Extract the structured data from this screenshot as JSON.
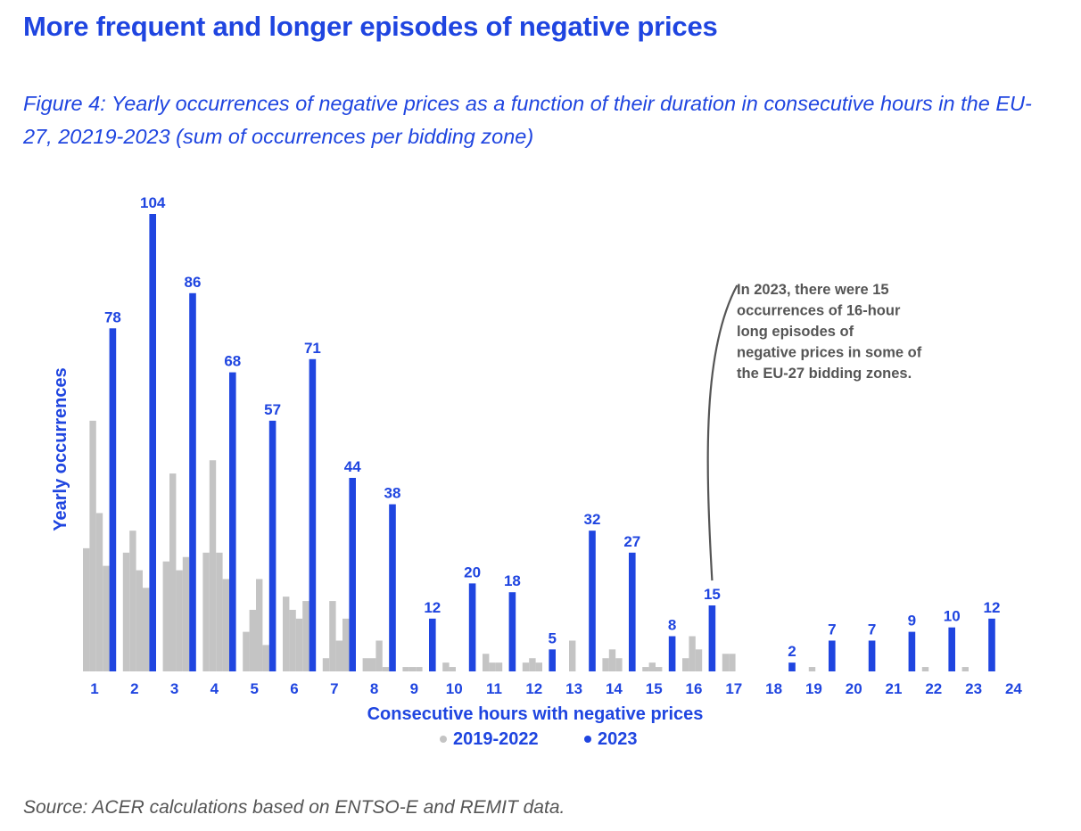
{
  "header": {
    "title": "More frequent and longer episodes of negative prices",
    "subtitle": "Figure 4:   Yearly occurrences of negative prices as a function of their duration in consecutive hours in the EU-27, 20219-2023 (sum of occurrences per bidding zone)"
  },
  "footer": {
    "source": "Source: ACER calculations based on ENTSO-E and REMIT data."
  },
  "chart_data": {
    "type": "bar",
    "xlabel": "Consecutive hours with negative prices",
    "ylabel": "Yearly occurrences",
    "ylim": [
      0,
      104
    ],
    "grid": false,
    "legend_position": "bottom-center",
    "categories": [
      "1",
      "2",
      "3",
      "4",
      "5",
      "6",
      "7",
      "8",
      "9",
      "10",
      "11",
      "12",
      "13",
      "14",
      "15",
      "16",
      "17",
      "18",
      "19",
      "20",
      "21",
      "22",
      "23",
      "24"
    ],
    "series": [
      {
        "name": "2019-2022",
        "color": "#c4c4c4",
        "values": [
          [
            28,
            57,
            36,
            24
          ],
          [
            27,
            32,
            23,
            19
          ],
          [
            25,
            45,
            23,
            26
          ],
          [
            27,
            48,
            27,
            21
          ],
          [
            9,
            14,
            21,
            6
          ],
          [
            17,
            14,
            12,
            16
          ],
          [
            3,
            16,
            7,
            12
          ],
          [
            3,
            3,
            7,
            1
          ],
          [
            1,
            1,
            1,
            0
          ],
          [
            2,
            1,
            0,
            0
          ],
          [
            4,
            2,
            2,
            0
          ],
          [
            2,
            3,
            2,
            0
          ],
          [
            0,
            7,
            0,
            0
          ],
          [
            3,
            5,
            3,
            0
          ],
          [
            1,
            2,
            1,
            0
          ],
          [
            3,
            8,
            5,
            0
          ],
          [
            4,
            4,
            0,
            0
          ],
          [
            0,
            0,
            0,
            0
          ],
          [
            0,
            1,
            0,
            0
          ],
          [
            0,
            0,
            0,
            0
          ],
          [
            0,
            0,
            0,
            0
          ],
          [
            1,
            0,
            0,
            0
          ],
          [
            1,
            0,
            0,
            0
          ],
          [
            0,
            0,
            0,
            0
          ]
        ]
      },
      {
        "name": "2023",
        "color": "#1f45e0",
        "values": [
          78,
          104,
          86,
          68,
          57,
          71,
          44,
          38,
          12,
          20,
          18,
          5,
          32,
          27,
          8,
          15,
          0,
          2,
          7,
          7,
          9,
          10,
          12,
          0
        ],
        "labels": [
          "78",
          "104",
          "86",
          "68",
          "57",
          "71",
          "44",
          "38",
          "12",
          "20",
          "18",
          "5",
          "32",
          "27",
          "8",
          "15",
          "",
          "2",
          "7",
          "7",
          "9",
          "10",
          "12",
          ""
        ]
      }
    ],
    "annotation": {
      "lines": [
        "In 2023, there were 15",
        "occurrences of 16-hour",
        "long episodes of",
        "negative prices in some of",
        "the EU-27 bidding zones."
      ],
      "target_category": "16",
      "target_series": "2023"
    }
  }
}
